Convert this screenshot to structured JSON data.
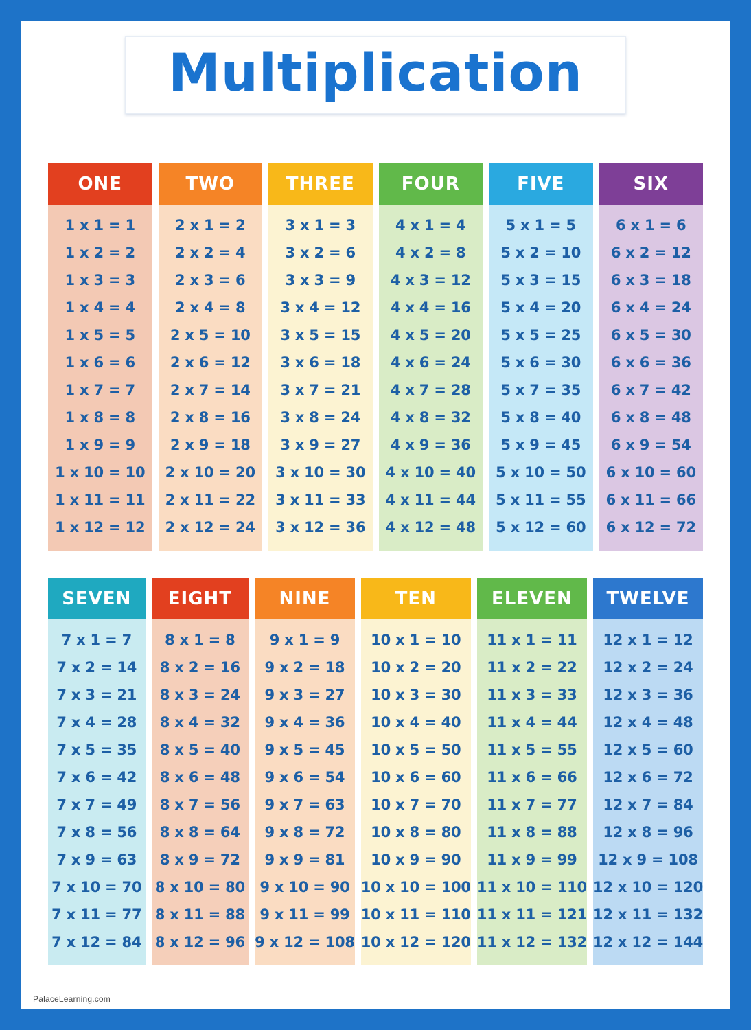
{
  "poster": {
    "title": "Multiplication",
    "footer": "PalaceLearning.com"
  },
  "colors": {
    "border_blue": "#1e73c8",
    "title_blue": "#1a73cf",
    "fact_blue": "#1d5fa5"
  },
  "tables": [
    {
      "name": "ONE",
      "header_color": "#e2401f",
      "body_color": "#f3c9b4",
      "facts": [
        "1 x 1 = 1",
        "1 x 2 = 2",
        "1 x 3 = 3",
        "1 x 4 = 4",
        "1 x 5 = 5",
        "1 x 6 = 6",
        "1 x 7 = 7",
        "1 x 8 = 8",
        "1 x 9 = 9",
        "1 x 10 = 10",
        "1 x 11 = 11",
        "1 x 12 = 12"
      ]
    },
    {
      "name": "TWO",
      "header_color": "#f58426",
      "body_color": "#fadcc2",
      "facts": [
        "2 x 1 = 2",
        "2 x 2 = 4",
        "2 x 3 = 6",
        "2 x 4 = 8",
        "2 x 5 = 10",
        "2 x 6 = 12",
        "2 x 7 = 14",
        "2 x 8 = 16",
        "2 x 9 = 18",
        "2 x 10 = 20",
        "2 x 11 = 22",
        "2 x 12 = 24"
      ]
    },
    {
      "name": "THREE",
      "header_color": "#f8b819",
      "body_color": "#fcf3d2",
      "facts": [
        "3 x 1 = 3",
        "3 x 2 = 6",
        "3 x 3 = 9",
        "3 x 4 = 12",
        "3 x 5 = 15",
        "3 x 6 = 18",
        "3 x 7 = 21",
        "3 x 8 = 24",
        "3 x 9 = 27",
        "3 x 10 = 30",
        "3 x 11 = 33",
        "3 x 12 = 36"
      ]
    },
    {
      "name": "FOUR",
      "header_color": "#61b94a",
      "body_color": "#d9ecc6",
      "facts": [
        "4 x 1 = 4",
        "4 x 2 = 8",
        "4 x 3 = 12",
        "4 x 4 = 16",
        "4 x 5 = 20",
        "4 x 6 = 24",
        "4 x 7 = 28",
        "4 x 8 = 32",
        "4 x 9 = 36",
        "4 x 10 = 40",
        "4 x 11 = 44",
        "4 x 12 = 48"
      ]
    },
    {
      "name": "FIVE",
      "header_color": "#2aa9e0",
      "body_color": "#c5e8f7",
      "facts": [
        "5 x 1 = 5",
        "5 x 2 = 10",
        "5 x 3 = 15",
        "5 x 4 = 20",
        "5 x 5 = 25",
        "5 x 6 = 30",
        "5 x 7 = 35",
        "5 x 8 = 40",
        "5 x 9 = 45",
        "5 x 10 = 50",
        "5 x 11 = 55",
        "5 x 12 = 60"
      ]
    },
    {
      "name": "SIX",
      "header_color": "#7e3f97",
      "body_color": "#dbc7e3",
      "facts": [
        "6 x 1 = 6",
        "6 x 2 = 12",
        "6 x 3 = 18",
        "6 x 4 = 24",
        "6 x 5 = 30",
        "6 x 6 = 36",
        "6 x 7 = 42",
        "6 x 8 = 48",
        "6 x 9 = 54",
        "6 x 10 = 60",
        "6 x 11 = 66",
        "6 x 12 = 72"
      ]
    },
    {
      "name": "SEVEN",
      "header_color": "#1fa9c0",
      "body_color": "#c9ebf1",
      "facts": [
        "7 x 1 = 7",
        "7 x 2 = 14",
        "7 x 3 = 21",
        "7 x 4 = 28",
        "7 x 5 = 35",
        "7 x 6 = 42",
        "7 x 7 = 49",
        "7 x 8 = 56",
        "7 x 9 = 63",
        "7 x 10 = 70",
        "7 x 11 = 77",
        "7 x 12 = 84"
      ]
    },
    {
      "name": "EIGHT",
      "header_color": "#e2401f",
      "body_color": "#f5cfba",
      "facts": [
        "8 x 1 = 8",
        "8 x 2 = 16",
        "8 x 3 = 24",
        "8 x 4 = 32",
        "8 x 5 = 40",
        "8 x 6 = 48",
        "8 x 7 = 56",
        "8 x 8 = 64",
        "8 x 9 = 72",
        "8 x 10 = 80",
        "8 x 11 = 88",
        "8 x 12 = 96"
      ]
    },
    {
      "name": "NINE",
      "header_color": "#f58426",
      "body_color": "#fadcc2",
      "facts": [
        "9 x 1 = 9",
        "9 x 2 = 18",
        "9 x 3 = 27",
        "9 x 4 = 36",
        "9 x 5 = 45",
        "9 x 6 = 54",
        "9 x 7 = 63",
        "9 x 8 = 72",
        "9 x 9 = 81",
        "9 x 10 = 90",
        "9 x 11 = 99",
        "9 x 12 = 108"
      ]
    },
    {
      "name": "TEN",
      "header_color": "#f8b819",
      "body_color": "#fcf3d2",
      "facts": [
        "10 x 1 = 10",
        "10 x 2 = 20",
        "10 x 3 = 30",
        "10 x 4 = 40",
        "10 x 5 = 50",
        "10 x 6 = 60",
        "10 x 7 = 70",
        "10 x 8 = 80",
        "10 x 9 = 90",
        "10 x 10 = 100",
        "10 x 11 = 110",
        "10 x 12 = 120"
      ]
    },
    {
      "name": "ELEVEN",
      "header_color": "#61b94a",
      "body_color": "#d9ecc6",
      "facts": [
        "11 x 1 = 11",
        "11 x 2 = 22",
        "11 x 3 = 33",
        "11 x 4 = 44",
        "11 x 5 = 55",
        "11 x 6 = 66",
        "11 x 7 = 77",
        "11 x 8 = 88",
        "11 x 9 = 99",
        "11 x 10 = 110",
        "11 x 11 = 121",
        "11 x 12 = 132"
      ]
    },
    {
      "name": "TWELVE",
      "header_color": "#2d78ce",
      "body_color": "#bcdaf3",
      "facts": [
        "12 x 1 = 12",
        "12 x 2 = 24",
        "12 x 3 = 36",
        "12 x 4 = 48",
        "12 x 5 = 60",
        "12 x 6 = 72",
        "12 x 7 = 84",
        "12 x 8 = 96",
        "12 x 9 = 108",
        "12 x 10 = 120",
        "12 x 11 = 132",
        "12 x 12 = 144"
      ]
    }
  ]
}
